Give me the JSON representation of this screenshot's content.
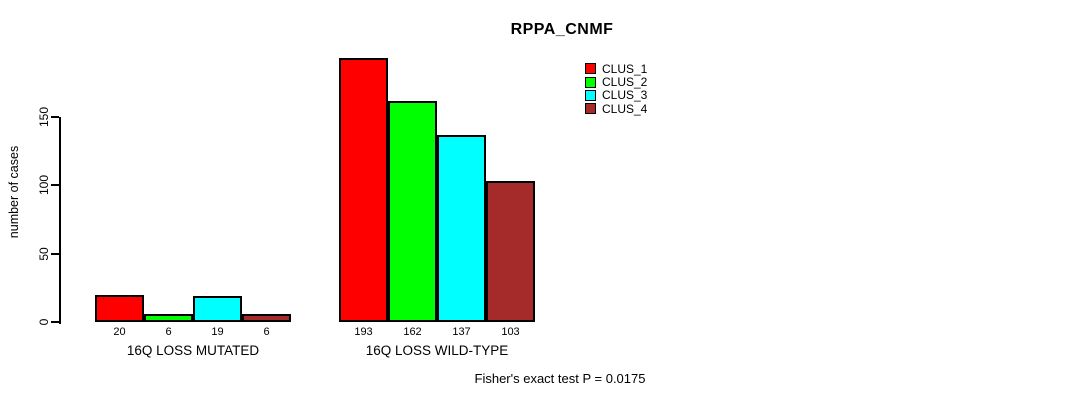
{
  "chart_data": {
    "type": "bar",
    "grouped": true,
    "title": "RPPA_CNMF",
    "ylabel": "number of cases",
    "xlabel": "",
    "categories": [
      "16Q LOSS MUTATED",
      "16Q LOSS WILD-TYPE"
    ],
    "series": [
      {
        "name": "CLUS_1",
        "color": "#ff0000",
        "values": [
          20,
          193
        ]
      },
      {
        "name": "CLUS_2",
        "color": "#00ff00",
        "values": [
          6,
          162
        ]
      },
      {
        "name": "CLUS_3",
        "color": "#00ffff",
        "values": [
          19,
          137
        ]
      },
      {
        "name": "CLUS_4",
        "color": "#a52a2a",
        "values": [
          6,
          103
        ]
      }
    ],
    "yticks": [
      0,
      50,
      100,
      150
    ],
    "ylim": [
      0,
      150
    ],
    "grid": false,
    "legend_position": "top-right",
    "bar_value_labels": [
      [
        "20",
        "6",
        "19",
        "6"
      ],
      [
        "193",
        "162",
        "137",
        "103"
      ]
    ],
    "annotation": "Fisher's exact test P = 0.0175"
  }
}
